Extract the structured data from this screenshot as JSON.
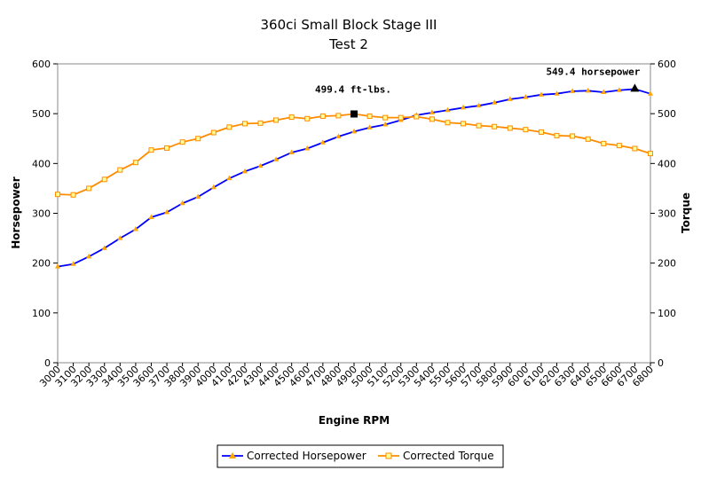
{
  "chart_data": {
    "type": "line",
    "title": "360ci Small Block Stage III",
    "subtitle": "Test 2",
    "xlabel": "Engine RPM",
    "ylabel_left": "Horsepower",
    "ylabel_right": "Torque",
    "ylim": [
      0,
      600
    ],
    "yticks": [
      0,
      100,
      200,
      300,
      400,
      500,
      600
    ],
    "grid": false,
    "legend_position": "bottom",
    "x": [
      3000,
      3100,
      3200,
      3300,
      3400,
      3500,
      3600,
      3700,
      3800,
      3900,
      4000,
      4100,
      4200,
      4300,
      4400,
      4500,
      4600,
      4700,
      4800,
      4900,
      5000,
      5100,
      5200,
      5300,
      5400,
      5500,
      5600,
      5700,
      5800,
      5900,
      6000,
      6100,
      6200,
      6300,
      6400,
      6500,
      6600,
      6700,
      6800
    ],
    "series": [
      {
        "name": "Corrected Horsepower",
        "color": "#0000ff",
        "marker_color": "#ffa500",
        "values": [
          193,
          198,
          213,
          230,
          250,
          268,
          292,
          302,
          320,
          333,
          352,
          370,
          384,
          395,
          408,
          422,
          430,
          442,
          454,
          464,
          472,
          478,
          487,
          497,
          502,
          507,
          512,
          516,
          522,
          529,
          533,
          538,
          540,
          545,
          546,
          543,
          547,
          549.4,
          540
        ]
      },
      {
        "name": "Corrected Torque",
        "color": "#ff8c00",
        "marker_color": "#ffa500",
        "values": [
          338,
          337,
          350,
          368,
          387,
          402,
          427,
          431,
          443,
          450,
          462,
          473,
          480,
          481,
          487,
          493,
          490,
          495,
          496,
          499.4,
          495,
          492,
          492,
          494,
          489,
          482,
          480,
          476,
          474,
          471,
          468,
          463,
          456,
          455,
          449,
          440,
          436,
          430,
          420
        ]
      }
    ],
    "annotations": [
      {
        "text": "499.4 ft-lbs.",
        "x": 4900,
        "y": 499.4,
        "series": 1,
        "marker": "square"
      },
      {
        "text": "549.4 horsepower",
        "x": 6700,
        "y": 549.4,
        "series": 0,
        "marker": "triangle"
      }
    ]
  }
}
